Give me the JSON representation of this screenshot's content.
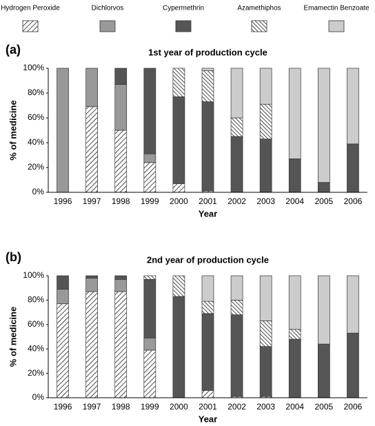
{
  "chart_data": [
    {
      "type": "stacked_bar",
      "panel_label": "(a)",
      "title": "1st year of production cycle",
      "xlabel": "Year",
      "ylabel": "% of medicine",
      "categories": [
        "1996",
        "1997",
        "1998",
        "1999",
        "2000",
        "2001",
        "2002",
        "2003",
        "2004",
        "2005",
        "2006"
      ],
      "ylim": [
        0,
        100
      ],
      "yticks": [
        {
          "value": 0,
          "label": "0%"
        },
        {
          "value": 20,
          "label": "20%"
        },
        {
          "value": 40,
          "label": "40%"
        },
        {
          "value": 60,
          "label": "60%"
        },
        {
          "value": 80,
          "label": "80%"
        },
        {
          "value": 100,
          "label": "100%"
        }
      ],
      "series": [
        {
          "name": "Hydrogen Peroxide",
          "color": "#ffffff",
          "pattern": "forward-hatch",
          "values": [
            0,
            69,
            50,
            24,
            7,
            1,
            0,
            0,
            0,
            0,
            0
          ]
        },
        {
          "name": "Dichlorvos",
          "color": "#999999",
          "values": [
            100,
            31,
            37,
            7,
            0,
            0,
            0,
            0,
            0,
            0,
            0
          ]
        },
        {
          "name": "Cypermethrin",
          "color": "#555555",
          "values": [
            0,
            0,
            13,
            69,
            70,
            72,
            45,
            43,
            27,
            8,
            39
          ]
        },
        {
          "name": "Azamethiphos",
          "color": "#ffffff",
          "pattern": "back-hatch",
          "values": [
            0,
            0,
            0,
            0,
            23,
            25,
            15,
            28,
            0,
            0,
            0
          ]
        },
        {
          "name": "Emamectin Benzoate",
          "color": "#cccccc",
          "values": [
            0,
            0,
            0,
            0,
            0,
            2,
            40,
            29,
            73,
            92,
            61
          ]
        }
      ]
    },
    {
      "type": "stacked_bar",
      "panel_label": "(b)",
      "title": "2nd year of production cycle",
      "xlabel": "Year",
      "ylabel": "% of medicine",
      "categories": [
        "1996",
        "1997",
        "1998",
        "1999",
        "2000",
        "2001",
        "2002",
        "2003",
        "2004",
        "2005",
        "2006"
      ],
      "ylim": [
        0,
        100
      ],
      "yticks": [
        {
          "value": 0,
          "label": "0%"
        },
        {
          "value": 20,
          "label": "20%"
        },
        {
          "value": 40,
          "label": "40%"
        },
        {
          "value": 60,
          "label": "60%"
        },
        {
          "value": 80,
          "label": "80%"
        },
        {
          "value": 100,
          "label": "100%"
        }
      ],
      "series": [
        {
          "name": "Hydrogen Peroxide",
          "color": "#ffffff",
          "pattern": "forward-hatch",
          "values": [
            77,
            87,
            87,
            39,
            0,
            6,
            1,
            1,
            0,
            0,
            0
          ]
        },
        {
          "name": "Dichlorvos",
          "color": "#999999",
          "values": [
            12,
            11,
            10,
            10,
            0,
            0,
            0,
            0,
            0,
            0,
            0
          ]
        },
        {
          "name": "Cypermethrin",
          "color": "#555555",
          "values": [
            11,
            2,
            3,
            48,
            83,
            63,
            67,
            41,
            48,
            44,
            53
          ]
        },
        {
          "name": "Azamethiphos",
          "color": "#ffffff",
          "pattern": "back-hatch",
          "values": [
            0,
            0,
            0,
            3,
            17,
            10,
            12,
            21,
            8,
            0,
            0
          ]
        },
        {
          "name": "Emamectin Benzoate",
          "color": "#cccccc",
          "values": [
            0,
            0,
            0,
            0,
            0,
            21,
            20,
            37,
            44,
            56,
            47
          ]
        }
      ]
    }
  ]
}
